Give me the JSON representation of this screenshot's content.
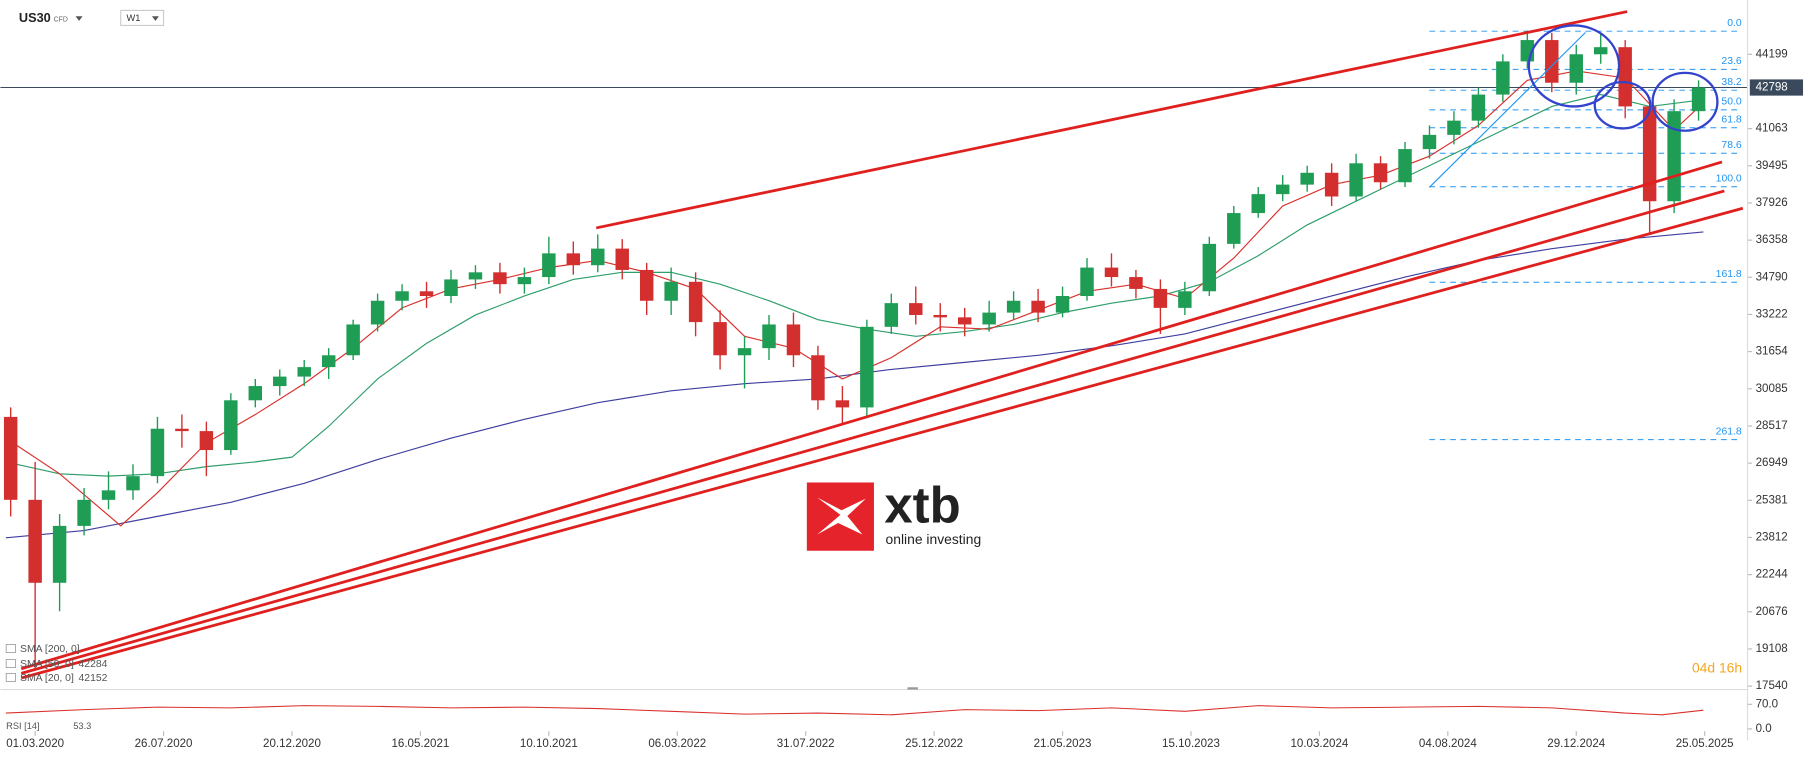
{
  "chart_data": {
    "type": "candlestick",
    "symbol": "US30",
    "instrument": "CFD",
    "timeframe": "W1",
    "brand": "xtb",
    "brand_tagline": "online investing",
    "countdown": "04d 16h",
    "xlim": [
      -0.42,
      71
    ],
    "xticks": [
      {
        "value": 1,
        "label": "01.03.2020"
      },
      {
        "value": 6.25,
        "label": "26.07.2020"
      },
      {
        "value": 11.5,
        "label": "20.12.2020"
      },
      {
        "value": 16.75,
        "label": "16.05.2021"
      },
      {
        "value": 22,
        "label": "10.10.2021"
      },
      {
        "value": 27.25,
        "label": "06.03.2022"
      },
      {
        "value": 32.5,
        "label": "31.07.2022"
      },
      {
        "value": 37.75,
        "label": "25.12.2022"
      },
      {
        "value": 43,
        "label": "21.05.2023"
      },
      {
        "value": 48.25,
        "label": "15.10.2023"
      },
      {
        "value": 53.5,
        "label": "10.03.2024"
      },
      {
        "value": 58.75,
        "label": "04.08.2024"
      },
      {
        "value": 64,
        "label": "29.12.2024"
      },
      {
        "value": 69.25,
        "label": "25.05.2025"
      }
    ],
    "ylim": [
      17540,
      46100
    ],
    "yticks": [
      44199,
      41063,
      39495,
      37926,
      36358,
      34790,
      33222,
      31654,
      30085,
      28517,
      26949,
      25381,
      23812,
      22244,
      20676,
      19108,
      17540
    ],
    "up_color": "#1f9d55",
    "down_color": "#d32f2f",
    "open": [
      28900,
      25400,
      21900,
      24300,
      25400,
      25800,
      26400,
      28400,
      28300,
      27500,
      29600,
      30200,
      30600,
      31000,
      31500,
      32800,
      33800,
      34200,
      34000,
      34700,
      35000,
      34500,
      34800,
      35800,
      35300,
      36000,
      35100,
      33800,
      34600,
      32900,
      31500,
      31800,
      32800,
      31500,
      29600,
      29300,
      32700,
      33700,
      33200,
      33100,
      32800,
      33300,
      33800,
      33300,
      34000,
      35200,
      34800,
      34300,
      33500,
      34200,
      36200,
      37500,
      38300,
      38700,
      39200,
      38200,
      39600,
      38800,
      40200,
      40800,
      41400,
      42500,
      43900,
      44800,
      43000,
      44200,
      44500,
      42000,
      38000,
      41800
    ],
    "high": [
      29300,
      27000,
      24800,
      25900,
      26600,
      26900,
      28900,
      29000,
      28700,
      29900,
      30500,
      30900,
      31300,
      31800,
      33000,
      34100,
      34500,
      34600,
      35100,
      35300,
      35400,
      35200,
      36500,
      36300,
      36600,
      36400,
      35400,
      35200,
      35000,
      33400,
      32300,
      33200,
      33300,
      31900,
      30200,
      33000,
      34100,
      34400,
      33700,
      33500,
      33800,
      34200,
      34300,
      34400,
      35600,
      35800,
      35100,
      34700,
      34600,
      36500,
      37800,
      38600,
      39100,
      39500,
      39600,
      40000,
      39900,
      40500,
      41200,
      41800,
      42800,
      44200,
      45200,
      45100,
      44600,
      45100,
      44800,
      42400,
      42300,
      43100
    ],
    "low": [
      24700,
      18200,
      20700,
      23900,
      25000,
      25400,
      26100,
      27600,
      26400,
      27300,
      29300,
      29800,
      30200,
      30500,
      31300,
      32500,
      33400,
      33500,
      33700,
      34300,
      34100,
      34100,
      34500,
      34900,
      35000,
      34700,
      33200,
      33200,
      32300,
      30900,
      30100,
      31300,
      31000,
      29200,
      28600,
      28900,
      32400,
      32800,
      32500,
      32300,
      32500,
      33000,
      32900,
      33100,
      33800,
      34400,
      33900,
      32400,
      33200,
      34000,
      36000,
      37300,
      38000,
      38400,
      37800,
      38000,
      38500,
      38600,
      39800,
      40400,
      41100,
      42200,
      43600,
      42600,
      42500,
      43800,
      41500,
      36600,
      37500,
      41400
    ],
    "close": [
      25400,
      21900,
      24300,
      25400,
      25800,
      26400,
      28400,
      28300,
      27500,
      29600,
      30200,
      30600,
      31000,
      31500,
      32800,
      33800,
      34200,
      34000,
      34700,
      35000,
      34500,
      34800,
      35800,
      35300,
      36000,
      35100,
      33800,
      34600,
      32900,
      31500,
      31800,
      32800,
      31500,
      29600,
      29300,
      32700,
      33700,
      33200,
      33100,
      32800,
      33300,
      33800,
      33300,
      34000,
      35200,
      34800,
      34300,
      33500,
      34200,
      36200,
      37500,
      38300,
      38700,
      39200,
      38200,
      39600,
      38800,
      40200,
      40800,
      41400,
      42500,
      43900,
      44800,
      43000,
      44200,
      44500,
      42000,
      38000,
      41800,
      42798
    ],
    "series": [
      {
        "name": "SMA [200, 0]",
        "color": "#3f3fa0",
        "x": [
          -0.2,
          3,
          6,
          9,
          12,
          15,
          18,
          21,
          24,
          27,
          30,
          33,
          36,
          39,
          42,
          45,
          48,
          51,
          54,
          57,
          60,
          63,
          66,
          69.2
        ],
        "values": [
          23800,
          24100,
          24700,
          25300,
          26100,
          27100,
          28000,
          28800,
          29500,
          30000,
          30300,
          30500,
          30900,
          31200,
          31500,
          31900,
          32400,
          33200,
          34000,
          34800,
          35500,
          36000,
          36400,
          36700
        ]
      },
      {
        "name": "SMA [50, 0]",
        "color": "#2e9e6a",
        "x": [
          -0.2,
          2,
          4,
          6,
          8,
          10,
          11.5,
          13,
          15,
          17,
          19,
          21,
          23,
          25,
          27,
          29,
          31,
          33,
          35,
          37,
          39,
          41,
          43,
          45,
          47,
          49,
          51,
          53,
          55,
          57,
          59,
          61,
          63,
          65,
          67,
          69.2
        ],
        "values": [
          27000,
          26500,
          26400,
          26500,
          26800,
          27000,
          27200,
          28500,
          30500,
          32000,
          33200,
          34000,
          34700,
          35000,
          35000,
          34500,
          33800,
          33000,
          32600,
          32300,
          32500,
          32800,
          33300,
          33700,
          34000,
          34600,
          35700,
          37000,
          38000,
          39000,
          40000,
          41000,
          42000,
          42500,
          42000,
          42284
        ]
      },
      {
        "name": "SMA [20, 0]",
        "color": "#d9302c",
        "x": [
          -0.2,
          2,
          4.5,
          6,
          8,
          10,
          12,
          14,
          16,
          18,
          20,
          22,
          24,
          26,
          28,
          30,
          32,
          34,
          36,
          38,
          40,
          42,
          44,
          46,
          48,
          50,
          52,
          54,
          56,
          58,
          60,
          62,
          64,
          66,
          68,
          69.2
        ],
        "values": [
          28000,
          26500,
          24300,
          25700,
          27800,
          29000,
          30300,
          31800,
          33500,
          34300,
          34700,
          35200,
          35500,
          35000,
          34300,
          32300,
          31800,
          30500,
          31400,
          32700,
          32600,
          33400,
          34200,
          34500,
          33900,
          35600,
          37800,
          38700,
          39100,
          39900,
          41200,
          43100,
          43500,
          43200,
          41000,
          42152
        ]
      }
    ],
    "fibonacci": {
      "color": "#2196f3",
      "levels": [
        "0.0",
        "23.6",
        "38.2",
        "50.0",
        "61.8",
        "78.6",
        "100.0",
        "161.8",
        "261.8"
      ],
      "prices": [
        45176,
        43564,
        42685,
        41855,
        41100,
        40025,
        38610,
        34580,
        27940
      ]
    },
    "rsi": {
      "name": "RSI [14]",
      "color": "#d9302c",
      "x": [
        -0.2,
        3,
        6,
        9,
        12,
        15,
        18,
        21,
        24,
        27,
        30,
        33,
        36,
        39,
        42,
        45,
        48,
        51,
        54,
        57,
        60,
        63,
        66,
        67.5,
        69.2
      ],
      "values": [
        45,
        55,
        62,
        60,
        66,
        64,
        60,
        62,
        58,
        50,
        42,
        45,
        40,
        55,
        52,
        60,
        50,
        66,
        60,
        62,
        64,
        60,
        45,
        40,
        53.3
      ],
      "ylim": [
        0,
        100
      ],
      "yticks": [
        {
          "value": 70,
          "label": "70.0"
        },
        {
          "value": 0,
          "label": "0.0"
        }
      ]
    }
  }
}
